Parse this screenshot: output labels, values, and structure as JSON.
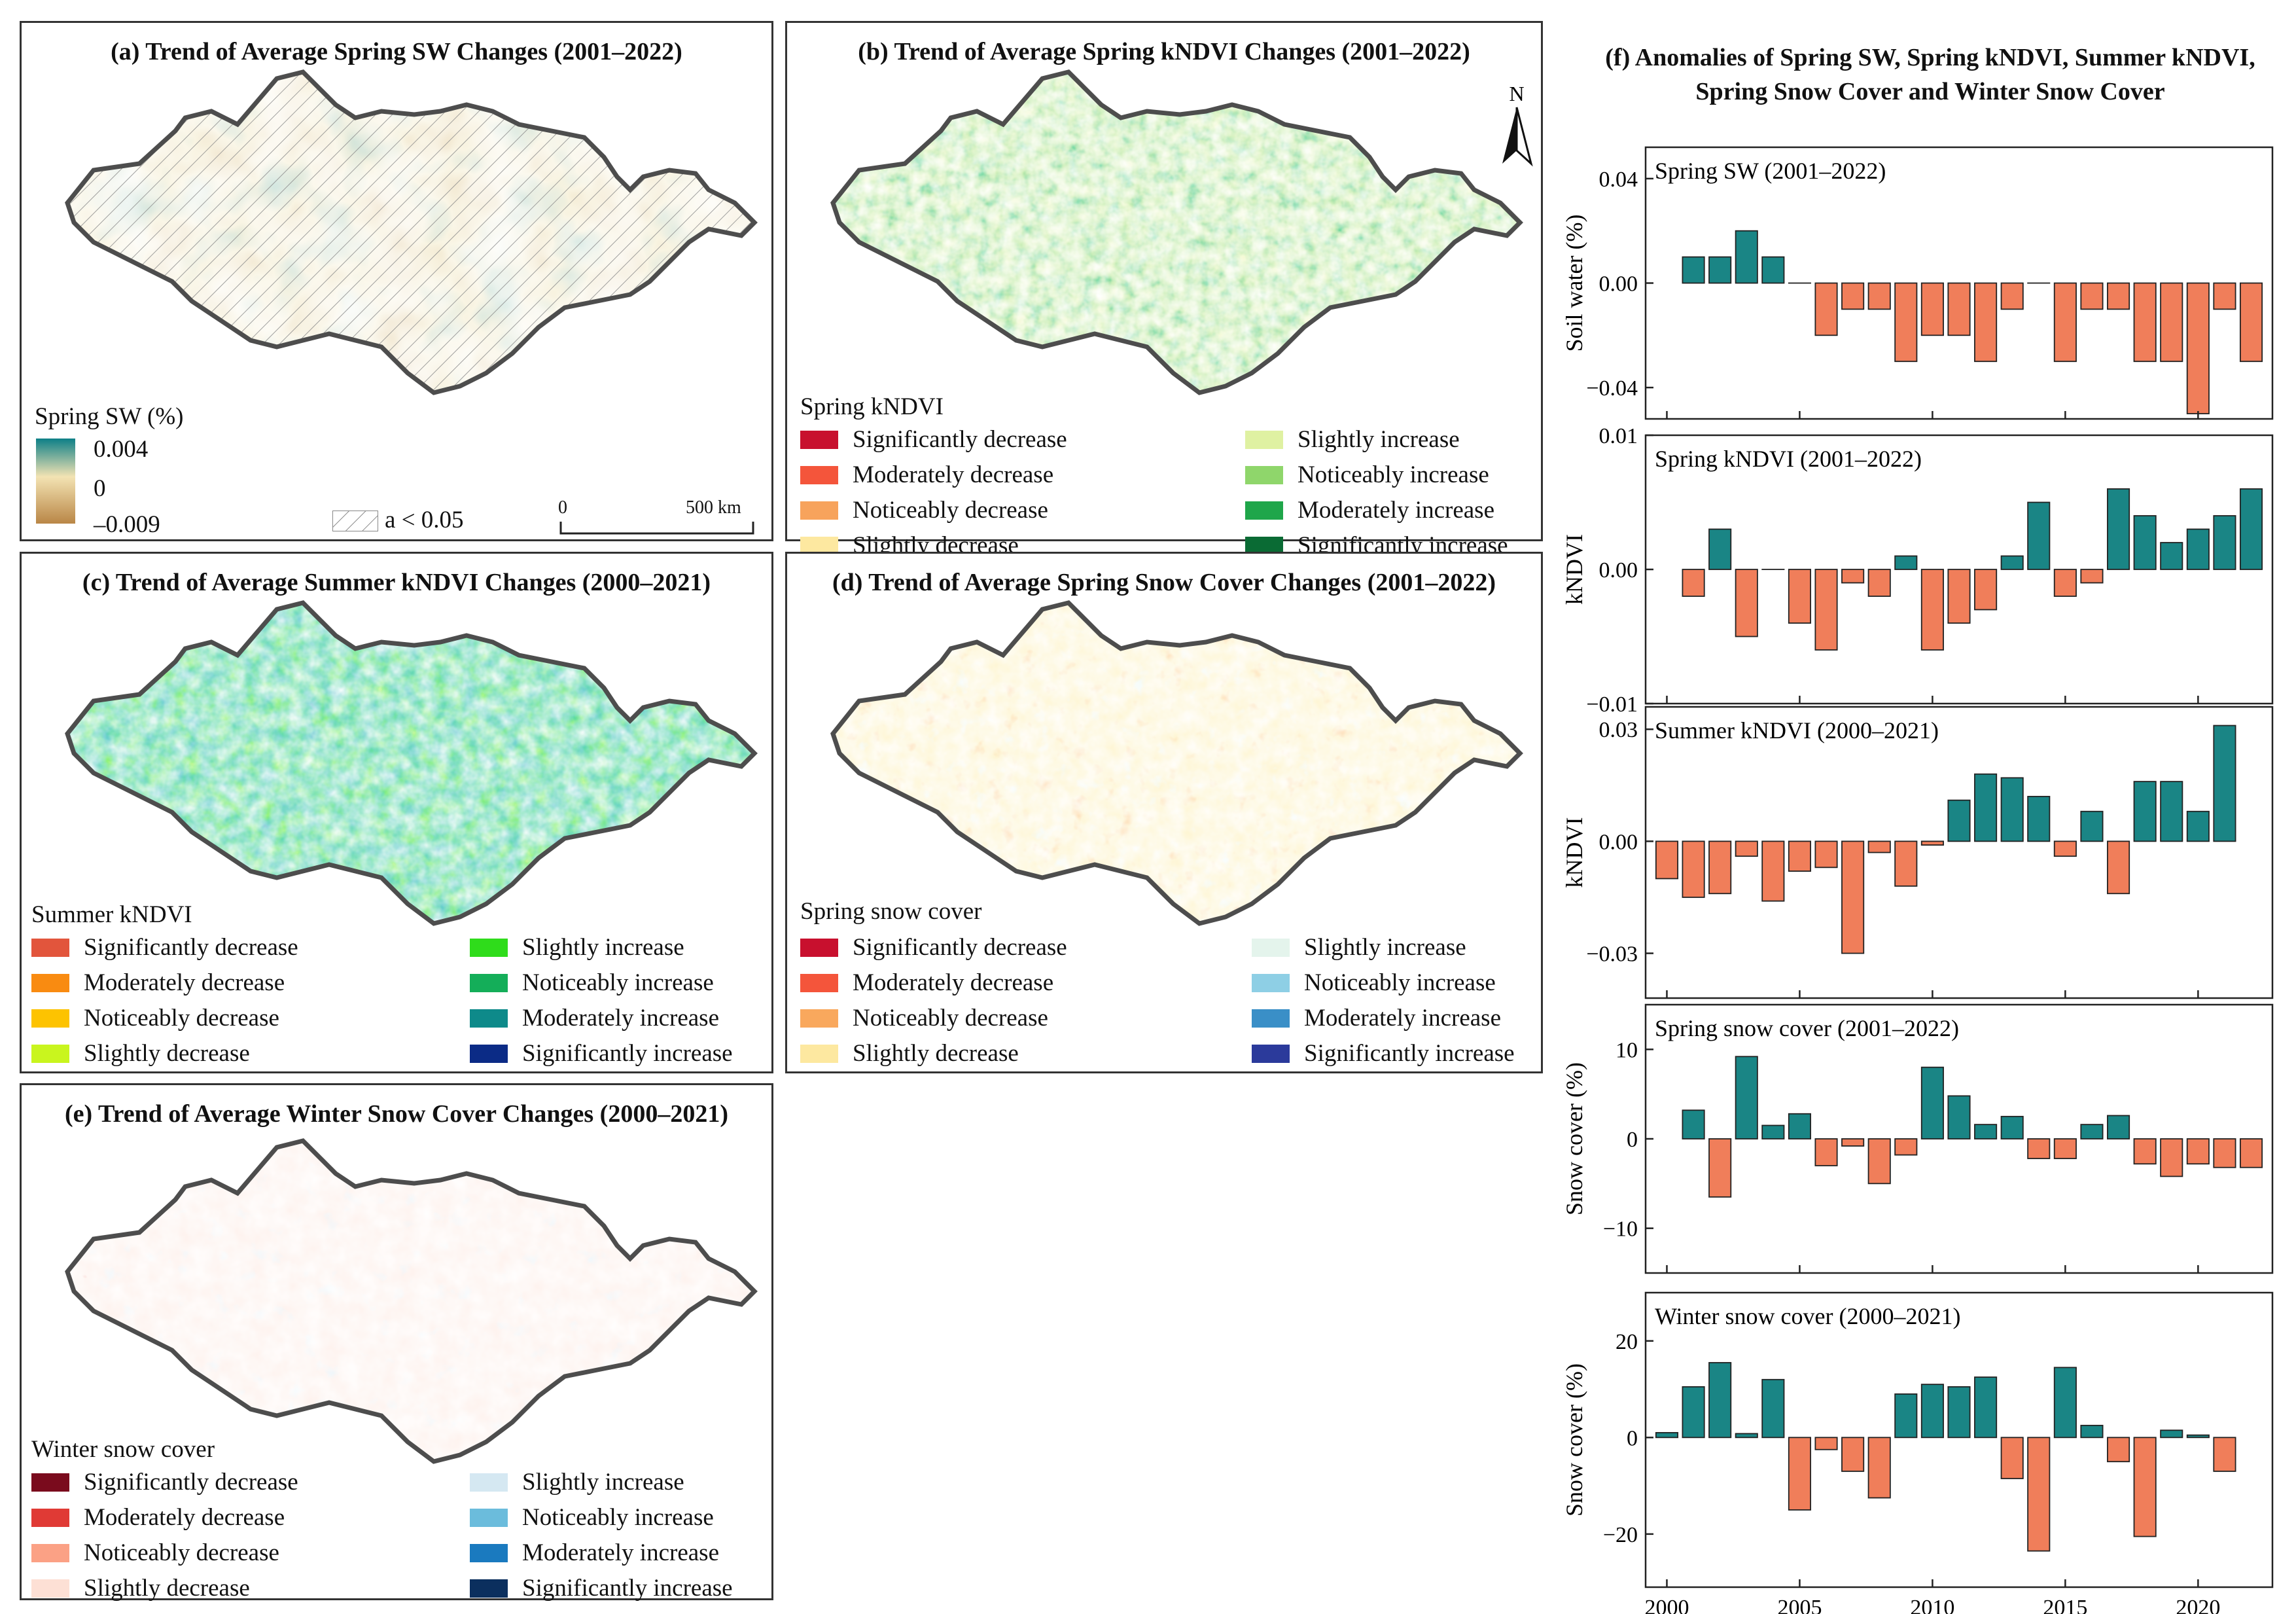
{
  "maps": {
    "a": {
      "title": "(a) Trend of Average Spring SW Changes (2001–2022)",
      "legend_title": "Spring SW (%)",
      "ticks": [
        "0.004",
        "0",
        "–0.009"
      ],
      "hatch_label": "a < 0.05",
      "scale_zero": "0",
      "scale_end": "500 km",
      "colors": [
        "#0d7f87",
        "#f3e3b3",
        "#b98646"
      ]
    },
    "b": {
      "title": "(b) Trend of Average Spring kNDVI Changes (2001–2022)",
      "north": "N",
      "legend_title": "Spring kNDVI",
      "items": [
        {
          "label": "Significantly decrease",
          "color": "#c8102e"
        },
        {
          "label": "Moderately decrease",
          "color": "#f4553b"
        },
        {
          "label": "Noticeably decrease",
          "color": "#f7a35c"
        },
        {
          "label": "Slightly decrease",
          "color": "#fde8a0"
        },
        {
          "label": "Slightly increase",
          "color": "#dff1a2"
        },
        {
          "label": "Noticeably increase",
          "color": "#8fd66b"
        },
        {
          "label": "Moderately increase",
          "color": "#1fa64a"
        },
        {
          "label": "Significantly increase",
          "color": "#0a6b34"
        }
      ]
    },
    "c": {
      "title": "(c) Trend of Average Summer kNDVI Changes (2000–2021)",
      "legend_title": "Summer kNDVI",
      "items": [
        {
          "label": "Significantly decrease",
          "color": "#e2553c"
        },
        {
          "label": "Moderately decrease",
          "color": "#f98b11"
        },
        {
          "label": "Noticeably decrease",
          "color": "#fdc301"
        },
        {
          "label": "Slightly decrease",
          "color": "#c9f51e"
        },
        {
          "label": "Slightly increase",
          "color": "#2fdc1b"
        },
        {
          "label": "Noticeably increase",
          "color": "#14ae59"
        },
        {
          "label": "Moderately increase",
          "color": "#0e8a8a"
        },
        {
          "label": "Significantly increase",
          "color": "#0b2b86"
        }
      ]
    },
    "d": {
      "title": "(d) Trend of Average Spring Snow Cover Changes (2001–2022)",
      "legend_title": "Spring snow cover",
      "items": [
        {
          "label": "Significantly decrease",
          "color": "#c8102e"
        },
        {
          "label": "Moderately decrease",
          "color": "#f4553b"
        },
        {
          "label": "Noticeably decrease",
          "color": "#f9a85d"
        },
        {
          "label": "Slightly decrease",
          "color": "#fde8a0"
        },
        {
          "label": "Slightly increase",
          "color": "#e4f4ec"
        },
        {
          "label": "Noticeably increase",
          "color": "#8ecfe5"
        },
        {
          "label": "Moderately increase",
          "color": "#3a8fc7"
        },
        {
          "label": "Significantly increase",
          "color": "#2b3a9b"
        }
      ]
    },
    "e": {
      "title": "(e) Trend of Average Winter Snow Cover Changes (2000–2021)",
      "legend_title": "Winter snow cover",
      "items": [
        {
          "label": "Significantly decrease",
          "color": "#7a0b1d"
        },
        {
          "label": "Moderately decrease",
          "color": "#e03a35"
        },
        {
          "label": "Noticeably decrease",
          "color": "#fba185"
        },
        {
          "label": "Slightly decrease",
          "color": "#fde0d5"
        },
        {
          "label": "Slightly increase",
          "color": "#d5e8f2"
        },
        {
          "label": "Noticeably increase",
          "color": "#6bbcdc"
        },
        {
          "label": "Moderately increase",
          "color": "#1a7abf"
        },
        {
          "label": "Significantly increase",
          "color": "#0b2f5e"
        }
      ]
    }
  },
  "chart_panel": {
    "title_line1": "(f) Anomalies of Spring SW, Spring kNDVI, Summer kNDVI,",
    "title_line2": "Spring Snow Cover and Winter Snow Cover",
    "positive_color": "#1a8585",
    "negative_color": "#f07e5a"
  },
  "chart_data": [
    {
      "type": "bar",
      "title": "Spring SW (2001–2022)",
      "ylabel": "Soil water (%)",
      "ylim": [
        -0.052,
        0.052
      ],
      "yticks": [
        -0.04,
        0.0,
        0.04
      ],
      "ytick_labels": [
        "−0.04",
        "0.00",
        "0.04"
      ],
      "x": [
        2001,
        2002,
        2003,
        2004,
        2005,
        2006,
        2007,
        2008,
        2009,
        2010,
        2011,
        2012,
        2013,
        2014,
        2015,
        2016,
        2017,
        2018,
        2019,
        2020,
        2021,
        2022
      ],
      "values": [
        0.01,
        0.01,
        0.02,
        0.01,
        0.0,
        -0.02,
        -0.01,
        -0.01,
        -0.03,
        -0.02,
        -0.02,
        -0.03,
        -0.01,
        0.0,
        -0.03,
        -0.01,
        -0.01,
        -0.03,
        -0.03,
        -0.05,
        -0.01,
        -0.03
      ]
    },
    {
      "type": "bar",
      "title": "Spring kNDVI  (2001–2022)",
      "ylabel": "kNDVI",
      "ylim": [
        -0.01,
        0.01
      ],
      "yticks": [
        -0.01,
        0.0,
        0.01
      ],
      "ytick_labels": [
        "−0.01",
        "0.00",
        "0.01"
      ],
      "x": [
        2001,
        2002,
        2003,
        2004,
        2005,
        2006,
        2007,
        2008,
        2009,
        2010,
        2011,
        2012,
        2013,
        2014,
        2015,
        2016,
        2017,
        2018,
        2019,
        2020,
        2021,
        2022
      ],
      "values": [
        -0.002,
        0.003,
        -0.005,
        0.0,
        -0.004,
        -0.006,
        -0.001,
        -0.002,
        0.001,
        -0.006,
        -0.004,
        -0.003,
        0.001,
        0.005,
        -0.002,
        -0.001,
        0.006,
        0.004,
        0.002,
        0.003,
        0.004,
        0.006
      ]
    },
    {
      "type": "bar",
      "title": "Summer kNDVI  (2000–2021)",
      "ylabel": "kNDVI",
      "ylim": [
        -0.042,
        0.036
      ],
      "yticks": [
        -0.03,
        0.0,
        0.03
      ],
      "ytick_labels": [
        "−0.03",
        "0.00",
        "0.03"
      ],
      "x": [
        2000,
        2001,
        2002,
        2003,
        2004,
        2005,
        2006,
        2007,
        2008,
        2009,
        2010,
        2011,
        2012,
        2013,
        2014,
        2015,
        2016,
        2017,
        2018,
        2019,
        2020,
        2021
      ],
      "values": [
        -0.01,
        -0.015,
        -0.014,
        -0.004,
        -0.016,
        -0.008,
        -0.007,
        -0.03,
        -0.003,
        -0.012,
        -0.001,
        0.011,
        0.018,
        0.017,
        0.012,
        -0.004,
        0.008,
        -0.014,
        0.016,
        0.016,
        0.008,
        0.031
      ]
    },
    {
      "type": "bar",
      "title": "Spring snow cover  (2001–2022)",
      "ylabel": "Snow cover (%)",
      "ylim": [
        -15,
        15
      ],
      "yticks": [
        -10,
        0,
        10
      ],
      "ytick_labels": [
        "−10",
        "0",
        "10"
      ],
      "x": [
        2001,
        2002,
        2003,
        2004,
        2005,
        2006,
        2007,
        2008,
        2009,
        2010,
        2011,
        2012,
        2013,
        2014,
        2015,
        2016,
        2017,
        2018,
        2019,
        2020,
        2021,
        2022
      ],
      "values": [
        3.2,
        -6.5,
        9.2,
        1.5,
        2.8,
        -3.0,
        -0.8,
        -5.0,
        -1.8,
        8.0,
        4.8,
        1.6,
        2.5,
        -2.2,
        -2.2,
        1.6,
        2.6,
        -2.8,
        -4.2,
        -2.8,
        -3.2,
        -3.2
      ]
    },
    {
      "type": "bar",
      "title": "Winter snow cover  (2000–2021)",
      "ylabel": "Snow cover (%)",
      "ylim": [
        -31,
        30
      ],
      "yticks": [
        -20,
        0,
        20
      ],
      "ytick_labels": [
        "−20",
        "0",
        "20"
      ],
      "x": [
        2000,
        2001,
        2002,
        2003,
        2004,
        2005,
        2006,
        2007,
        2008,
        2009,
        2010,
        2011,
        2012,
        2013,
        2014,
        2015,
        2016,
        2017,
        2018,
        2019,
        2020,
        2021
      ],
      "values": [
        1.0,
        10.5,
        15.5,
        0.8,
        12.0,
        -15.0,
        -2.5,
        -7.0,
        -12.5,
        9.0,
        11.0,
        10.5,
        12.5,
        -8.5,
        -23.5,
        14.5,
        2.5,
        -5.0,
        -20.5,
        1.5,
        0.5,
        -7.0
      ]
    }
  ],
  "x_axis": {
    "ticks": [
      2000,
      2005,
      2010,
      2015,
      2020
    ],
    "tick_labels": [
      "2000",
      "2005",
      "2010",
      "2015",
      "2020"
    ]
  }
}
